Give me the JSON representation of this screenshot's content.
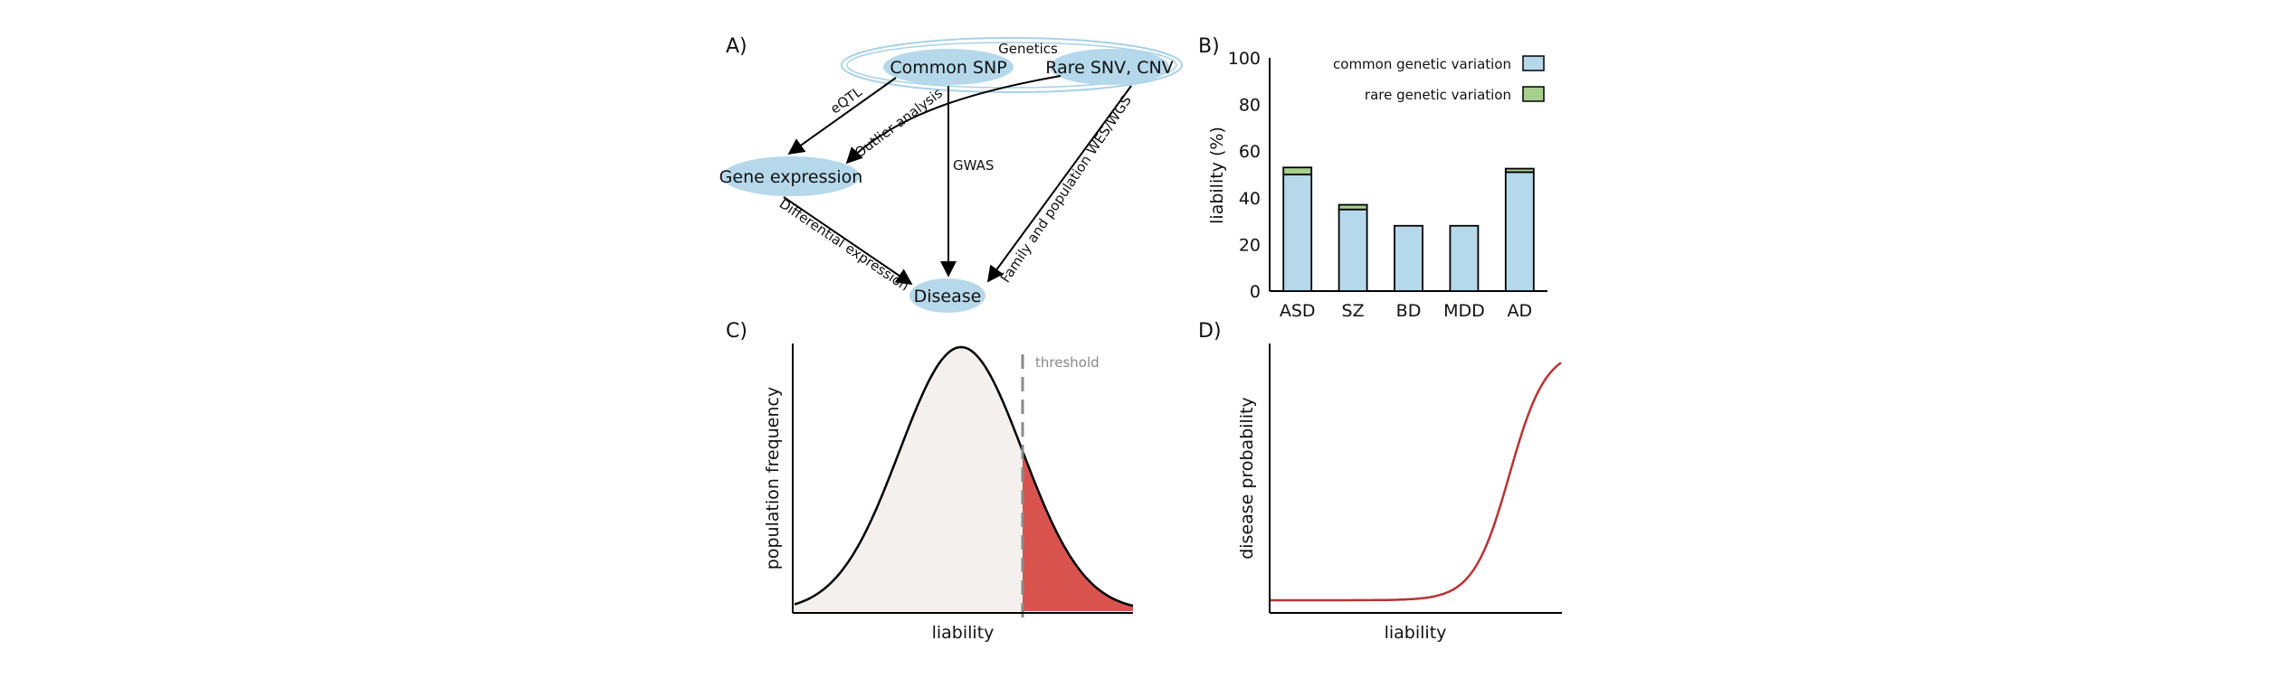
{
  "panels": {
    "a": "A)",
    "b": "B)",
    "c": "C)",
    "d": "D)"
  },
  "diagram": {
    "group_label": "Genetics",
    "nodes": {
      "common_snp": "Common SNP",
      "rare_snv": "Rare SNV, CNV",
      "gene_expression": "Gene expression",
      "disease": "Disease"
    },
    "edges": {
      "eqtl": "eQTL",
      "outlier": "Outlier analysis",
      "gwas": "GWAS",
      "family": "Family and population WES/WGS",
      "differential": "Differential expression"
    },
    "node_color": "#b5d8ea"
  },
  "chart_data": [
    {
      "type": "bar",
      "stacked": true,
      "categories": [
        "ASD",
        "SZ",
        "BD",
        "MDD",
        "AD"
      ],
      "series": [
        {
          "name": "common genetic variation",
          "values": [
            50,
            35,
            28,
            28,
            51
          ],
          "color": "#b5d8ea"
        },
        {
          "name": "rare genetic variation",
          "values": [
            3,
            2,
            0,
            0,
            1.5
          ],
          "color": "#a8d08d"
        }
      ],
      "ylabel": "liability (%)",
      "ylim": [
        0,
        100
      ],
      "yticks": [
        0,
        20,
        40,
        60,
        80,
        100
      ],
      "legend": "top-right"
    },
    {
      "type": "area",
      "xlabel": "liability",
      "ylabel": "population frequency",
      "threshold_label": "threshold",
      "fill_color": "#f3f0ed",
      "tail_color": "#d9534f"
    },
    {
      "type": "line",
      "xlabel": "liability",
      "ylabel": "disease probability",
      "line_color": "#b83232"
    }
  ]
}
